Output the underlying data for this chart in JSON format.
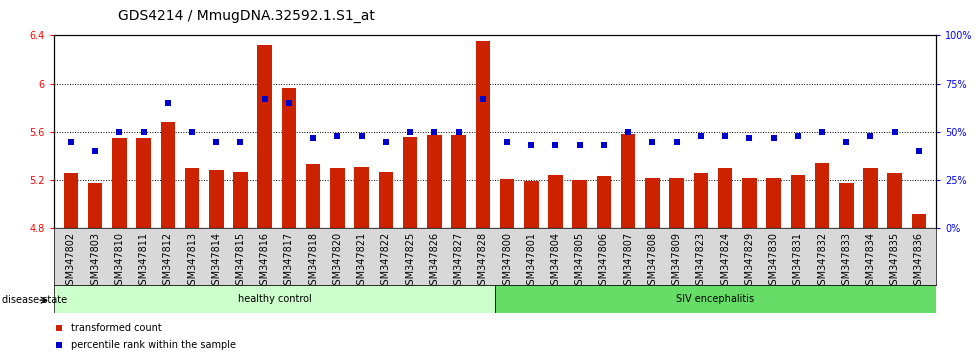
{
  "title": "GDS4214 / MmugDNA.32592.1.S1_at",
  "categories": [
    "GSM347802",
    "GSM347803",
    "GSM347810",
    "GSM347811",
    "GSM347812",
    "GSM347813",
    "GSM347814",
    "GSM347815",
    "GSM347816",
    "GSM347817",
    "GSM347818",
    "GSM347820",
    "GSM347821",
    "GSM347822",
    "GSM347825",
    "GSM347826",
    "GSM347827",
    "GSM347828",
    "GSM347800",
    "GSM347801",
    "GSM347804",
    "GSM347805",
    "GSM347806",
    "GSM347807",
    "GSM347808",
    "GSM347809",
    "GSM347823",
    "GSM347824",
    "GSM347829",
    "GSM347830",
    "GSM347831",
    "GSM347832",
    "GSM347833",
    "GSM347834",
    "GSM347835",
    "GSM347836"
  ],
  "bar_values": [
    5.26,
    5.18,
    5.55,
    5.55,
    5.68,
    5.3,
    5.28,
    5.27,
    6.32,
    5.96,
    5.33,
    5.3,
    5.31,
    5.27,
    5.56,
    5.57,
    5.57,
    6.35,
    5.21,
    5.19,
    5.24,
    5.2,
    5.23,
    5.58,
    5.22,
    5.22,
    5.26,
    5.3,
    5.22,
    5.22,
    5.24,
    5.34,
    5.18,
    5.3,
    5.26,
    4.92
  ],
  "dot_percentiles": [
    45,
    40,
    50,
    50,
    65,
    50,
    45,
    45,
    67,
    65,
    47,
    48,
    48,
    45,
    50,
    50,
    50,
    67,
    45,
    43,
    43,
    43,
    43,
    50,
    45,
    45,
    48,
    48,
    47,
    47,
    48,
    50,
    45,
    48,
    50,
    40
  ],
  "bar_color": "#cc2200",
  "dot_color": "#0000cc",
  "ylim_left": [
    4.8,
    6.4
  ],
  "ylim_right": [
    0,
    100
  ],
  "yticks_left": [
    4.8,
    5.2,
    5.6,
    6.0,
    6.4
  ],
  "ytick_labels_left": [
    "4.8",
    "5.2",
    "5.6",
    "6",
    "6.4"
  ],
  "yticks_right": [
    0,
    25,
    50,
    75,
    100
  ],
  "ytick_labels_right": [
    "0%",
    "25%",
    "50%",
    "75%",
    "100%"
  ],
  "healthy_count": 18,
  "healthy_label": "healthy control",
  "disease_label": "SIV encephalitis",
  "healthy_color": "#ccffcc",
  "disease_color": "#66dd66",
  "legend_bar": "transformed count",
  "legend_dot": "percentile rank within the sample",
  "disease_state_label": "disease state",
  "title_fontsize": 10,
  "tick_fontsize": 7,
  "label_fontsize": 7
}
